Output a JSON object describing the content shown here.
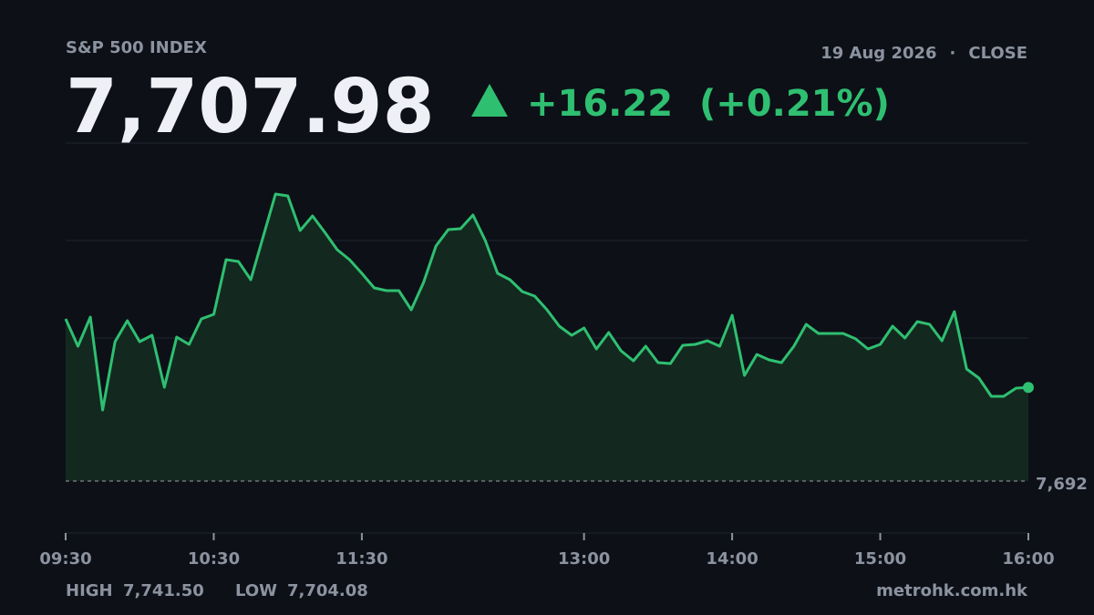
{
  "chart_data": {
    "type": "area",
    "title": "S&P 500 INDEX",
    "price": "7,707.98",
    "change": "+16.22",
    "change_pct": "(+0.21%)",
    "date": "19 Aug 2026",
    "separator": "·",
    "status": "CLOSE",
    "high_label": "HIGH",
    "high": "7,741.50",
    "low_label": "LOW",
    "low": "7,704.08",
    "source": "metrohk.com.hk",
    "color": "#2fbf71",
    "fill": "#13291f",
    "x": [
      "09:30",
      "09:35",
      "09:40",
      "09:45",
      "09:50",
      "09:55",
      "10:00",
      "10:05",
      "10:10",
      "10:15",
      "10:20",
      "10:25",
      "10:30",
      "10:35",
      "10:40",
      "10:45",
      "10:50",
      "10:55",
      "11:00",
      "11:05",
      "11:10",
      "11:15",
      "11:20",
      "11:25",
      "11:30",
      "11:35",
      "11:40",
      "11:45",
      "11:50",
      "11:55",
      "12:00",
      "12:05",
      "12:10",
      "12:15",
      "12:20",
      "12:25",
      "12:30",
      "12:35",
      "12:40",
      "12:45",
      "12:50",
      "12:55",
      "13:00",
      "13:05",
      "13:10",
      "13:15",
      "13:20",
      "13:25",
      "13:30",
      "13:35",
      "13:40",
      "13:45",
      "13:50",
      "13:55",
      "14:00",
      "14:05",
      "14:10",
      "14:15",
      "14:20",
      "14:25",
      "14:30",
      "14:35",
      "14:40",
      "14:45",
      "14:50",
      "14:55",
      "15:00",
      "15:05",
      "15:10",
      "15:15",
      "15:20",
      "15:25",
      "15:30",
      "15:35",
      "15:40",
      "15:45",
      "15:50",
      "15:55",
      "16:00"
    ],
    "values": [
      7719.87,
      7715.13,
      7720.18,
      7704.08,
      7715.92,
      7719.55,
      7715.92,
      7717.03,
      7708.03,
      7716.71,
      7715.45,
      7719.87,
      7720.66,
      7730.13,
      7729.82,
      7726.66,
      7734.08,
      7741.5,
      7741.18,
      7735.18,
      7737.71,
      7734.87,
      7731.87,
      7730.13,
      7727.76,
      7725.24,
      7724.76,
      7724.76,
      7721.45,
      7726.18,
      7732.5,
      7735.34,
      7735.5,
      7737.87,
      7733.45,
      7727.76,
      7726.66,
      7724.61,
      7723.82,
      7721.45,
      7718.61,
      7717.03,
      7718.29,
      7714.66,
      7717.5,
      7714.34,
      7712.61,
      7715.13,
      7712.29,
      7712.13,
      7715.29,
      7715.45,
      7716.08,
      7715.13,
      7720.5,
      7710.08,
      7713.71,
      7712.76,
      7712.29,
      7715.13,
      7718.92,
      7717.34,
      7717.34,
      7717.34,
      7716.4,
      7714.66,
      7715.45,
      7718.61,
      7716.55,
      7719.4,
      7718.92,
      7716.08,
      7721.13,
      7711.18,
      7709.61,
      7706.45,
      7706.45,
      7707.87,
      7707.98
    ],
    "xlim": [
      "09:30",
      "16:00"
    ],
    "xticks": [
      "09:30",
      "10:30",
      "11:30",
      "13:00",
      "14:00",
      "15:00",
      "16:00"
    ],
    "ylim": [
      7682.76,
      7750.34
    ],
    "reference_line": {
      "value": 7691.76,
      "label": "7,692"
    }
  }
}
